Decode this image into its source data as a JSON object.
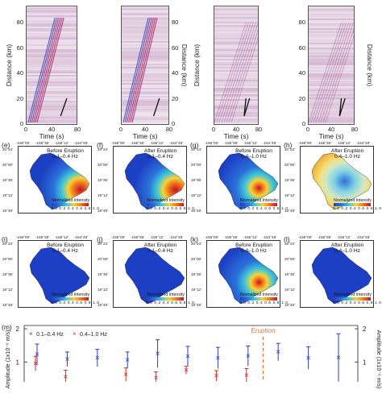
{
  "top": {
    "ylabel": "Distance (km)",
    "xlabel": "Time (s)",
    "y_ticks": [
      "80",
      "60",
      "40",
      "20",
      "0"
    ],
    "x_ticks": [
      "0",
      "40",
      "80"
    ]
  },
  "maps": {
    "lon_ticks": [
      "-156°00'",
      "-155°36'",
      "-155°12'",
      "-154°48'"
    ],
    "lat_ticks": [
      "20°24'",
      "20°00'",
      "19°36'",
      "19°12'",
      "18°48'"
    ],
    "colorbar_label": "Normalized Intensity",
    "colorbar_ticks": "0.0 0.2 0.4 0.6 0.8 1.0",
    "row1": [
      {
        "letter": "(e)",
        "line1": "Before Eruption",
        "line2": "0.1–0.4 Hz"
      },
      {
        "letter": "(f)",
        "line1": "After Eruption",
        "line2": "0.1–0.4 Hz"
      },
      {
        "letter": "(g)",
        "line1": "Before Eruption",
        "line2": "0.4–1.0 Hz"
      },
      {
        "letter": "(h)",
        "line1": "After Eruption",
        "line2": "0.4–1.0 Hz"
      }
    ],
    "row2": [
      {
        "letter": "(i)",
        "line1": "Before Eruption",
        "line2": "0.1–0.4 Hz"
      },
      {
        "letter": "(j)",
        "line1": "After Eruption",
        "line2": "0.1–0.4 Hz"
      },
      {
        "letter": "(k)",
        "line1": "Before Eruption",
        "line2": "0.4–1.0 Hz"
      },
      {
        "letter": "(l)",
        "line1": "After Eruption",
        "line2": "0.4–1.0 Hz"
      }
    ]
  },
  "bottom": {
    "letter": "(m)",
    "legend_blue": "0.1–0.4 Hz",
    "legend_red": "0.4–1.0 Hz",
    "eruption_label": "Eruption",
    "ylabel_left": "Amplitude (1x10⁻⁶ m/s)",
    "ylabel_right": "Amplitude (1x10⁻⁶ m/s)",
    "left_ticks": [
      "2",
      "1"
    ],
    "right_ticks": [
      "2",
      "1"
    ],
    "colors": {
      "blue": "#2a3fb8",
      "red": "#d62a2a",
      "eruption": "#e8743b"
    }
  },
  "chart_data": {
    "type": "scatter",
    "xlabel": "",
    "ylabel": "Amplitude (1x10⁻⁶ m/s)",
    "ylim": [
      0.4,
      2.05
    ],
    "x": [
      1,
      2,
      3,
      4,
      5,
      6,
      7,
      8,
      9,
      10,
      11
    ],
    "series": [
      {
        "name": "0.1–0.4 Hz",
        "values": [
          1.22,
          1.08,
          1.12,
          1.06,
          1.25,
          1.17,
          1.12,
          1.18,
          1.3,
          1.12,
          1.13
        ],
        "error": [
          0.32,
          0.22,
          0.26,
          0.24,
          0.42,
          0.3,
          0.32,
          0.3,
          0.26,
          0.34,
          0.72
        ]
      },
      {
        "name": "0.4–1.0 Hz",
        "values": [
          0.95,
          0.55,
          null,
          0.62,
          0.52,
          0.75,
          0.58,
          0.6,
          null,
          null,
          null
        ],
        "error": [
          0.22,
          0.2,
          null,
          0.2,
          0.18,
          0.12,
          0.16,
          0.2,
          null,
          null,
          null
        ]
      }
    ],
    "eruption_between": [
      8,
      9
    ]
  }
}
